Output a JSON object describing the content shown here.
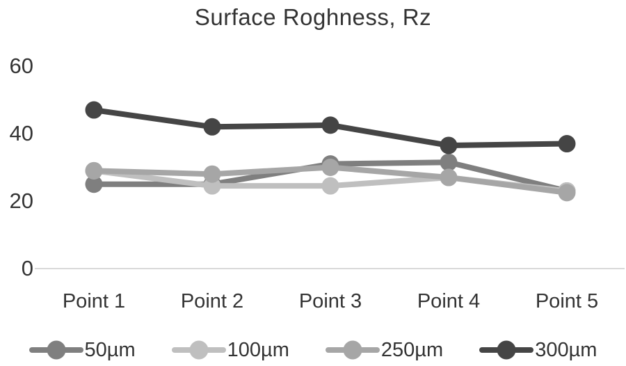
{
  "title": "Surface Roghness, Rz",
  "chart_data": {
    "type": "line",
    "title": "Surface Roghness, Rz",
    "categories": [
      "Point 1",
      "Point 2",
      "Point 3",
      "Point 4",
      "Point 5"
    ],
    "series": [
      {
        "name": "50µm",
        "color": "#7f7f7f",
        "values": [
          25,
          25,
          31,
          31.5,
          23
        ]
      },
      {
        "name": "100µm",
        "color": "#bfbfbf",
        "values": [
          29,
          24.5,
          24.5,
          27,
          23
        ]
      },
      {
        "name": "250µm",
        "color": "#a6a6a6",
        "values": [
          29,
          28,
          30,
          27,
          22.5
        ]
      },
      {
        "name": "300µm",
        "color": "#454545",
        "values": [
          47,
          42,
          42.5,
          36.5,
          37
        ]
      }
    ],
    "xlabel": "",
    "ylabel": "",
    "ylim": [
      0,
      60
    ],
    "yticks": [
      0,
      20,
      40,
      60
    ],
    "grid": false,
    "legend_position": "bottom",
    "axis_line_color": "#d9d9d9",
    "text_color": "#333333"
  }
}
